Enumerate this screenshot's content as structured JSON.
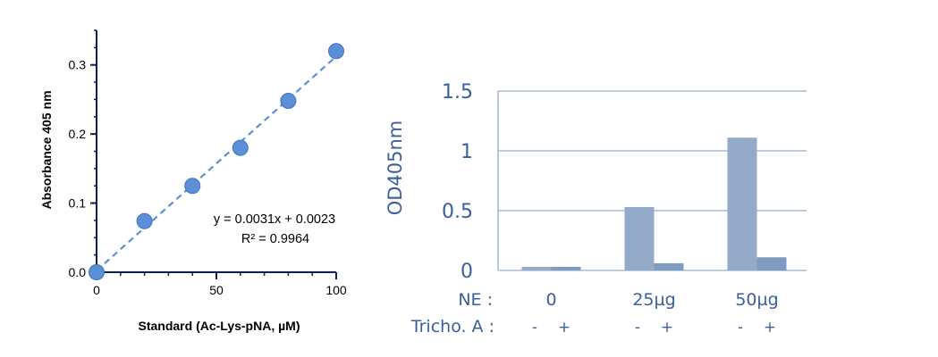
{
  "chart_data": [
    {
      "type": "scatter",
      "xlabel": "Standard (Ac-Lys-pNA, µM)",
      "ylabel": "Absorbance 405 nm",
      "xlim": [
        0,
        100
      ],
      "ylim": [
        0,
        0.35
      ],
      "x_ticks": [
        "0",
        "50",
        "100"
      ],
      "y_ticks": [
        "0.0",
        "0.1",
        "0.2",
        "0.3"
      ],
      "points": [
        {
          "x": 0,
          "y": 0.0
        },
        {
          "x": 20,
          "y": 0.074
        },
        {
          "x": 40,
          "y": 0.125
        },
        {
          "x": 60,
          "y": 0.18
        },
        {
          "x": 80,
          "y": 0.248
        },
        {
          "x": 100,
          "y": 0.32
        }
      ],
      "trendline": {
        "type": "linear",
        "slope": 0.0031,
        "intercept": 0.0023,
        "style": "dashed"
      },
      "annotations": [
        "y = 0.0031x + 0.0023",
        "R² = 0.9964"
      ],
      "grid": false,
      "colors": {
        "points": "#5b8fd8",
        "point_edge": "#3f73c0",
        "axis": "#0f1f4f",
        "trendline": "#5b8fd8"
      }
    },
    {
      "type": "bar",
      "ylabel": "OD405nm",
      "ylim": [
        0,
        1.5
      ],
      "y_ticks": [
        "0",
        "0.5",
        "1",
        "1.5"
      ],
      "categories": [
        "0",
        "25µg",
        "50µg"
      ],
      "row_labels": {
        "ne": "NE :",
        "tricho": "Tricho. A :"
      },
      "sign_labels": [
        "-",
        "+"
      ],
      "series": [
        {
          "values": [
            0.03,
            0.53,
            1.11
          ]
        },
        {
          "values": [
            0.03,
            0.06,
            0.11
          ]
        }
      ],
      "grid": true,
      "colors": {
        "bar_minus": "#93aac9",
        "bar_plus": "#809bc2",
        "grid": "#a9bcd4",
        "text": "#3a5f9a"
      }
    }
  ]
}
